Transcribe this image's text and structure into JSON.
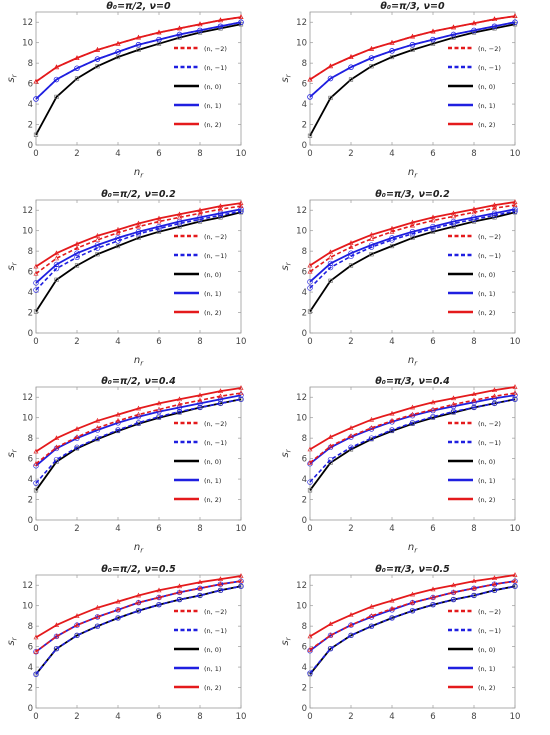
{
  "figure": {
    "legend_entries": [
      "(n, −2)",
      "(n, −1)",
      "(n, 0)",
      "(n, 1)",
      "(n, 2)"
    ],
    "series_colors": {
      "(n, -2)": "#e41a1c",
      "(n, -1)": "#1f1fe0",
      "(n, 0)": "#000000",
      "(n, 1)": "#1f1fe0",
      "(n, 2)": "#e41a1c"
    },
    "series_dash": [
      true,
      true,
      false,
      false,
      false
    ]
  },
  "chart_data": [
    {
      "type": "line",
      "title": "θ₀=π/2, ν=0",
      "xlabel": "n_r",
      "ylabel": "s_r",
      "xlim": [
        0,
        10
      ],
      "ylim": [
        0,
        13
      ],
      "xticks": [
        0,
        2,
        4,
        6,
        8,
        10
      ],
      "yticks": [
        0,
        2,
        4,
        6,
        8,
        10,
        12
      ],
      "x": [
        0,
        1,
        2,
        3,
        4,
        5,
        6,
        7,
        8,
        9,
        10
      ],
      "series": [
        {
          "name": "(n, −2)",
          "values": [
            6.2,
            7.6,
            8.5,
            9.3,
            9.9,
            10.5,
            11.0,
            11.4,
            11.8,
            12.2,
            12.5
          ]
        },
        {
          "name": "(n, −1)",
          "values": [
            4.5,
            6.4,
            7.5,
            8.4,
            9.1,
            9.8,
            10.3,
            10.8,
            11.2,
            11.6,
            12.0
          ]
        },
        {
          "name": "(n, 0)",
          "values": [
            1.0,
            4.7,
            6.5,
            7.7,
            8.6,
            9.3,
            9.9,
            10.5,
            11.0,
            11.4,
            11.8
          ]
        },
        {
          "name": "(n, 1)",
          "values": [
            4.5,
            6.4,
            7.5,
            8.4,
            9.1,
            9.8,
            10.3,
            10.8,
            11.2,
            11.6,
            12.0
          ]
        },
        {
          "name": "(n, 2)",
          "values": [
            6.2,
            7.6,
            8.5,
            9.3,
            9.9,
            10.5,
            11.0,
            11.4,
            11.8,
            12.2,
            12.5
          ]
        }
      ]
    },
    {
      "type": "line",
      "title": "θ₀=π/3, ν=0",
      "xlabel": "n_r",
      "ylabel": "s_r",
      "xlim": [
        0,
        10
      ],
      "ylim": [
        0,
        13
      ],
      "xticks": [
        0,
        2,
        4,
        6,
        8,
        10
      ],
      "yticks": [
        0,
        2,
        4,
        6,
        8,
        10,
        12
      ],
      "x": [
        0,
        1,
        2,
        3,
        4,
        5,
        6,
        7,
        8,
        9,
        10
      ],
      "series": [
        {
          "name": "(n, −2)",
          "values": [
            6.4,
            7.7,
            8.6,
            9.4,
            10.0,
            10.6,
            11.1,
            11.5,
            11.9,
            12.3,
            12.6
          ]
        },
        {
          "name": "(n, −1)",
          "values": [
            4.7,
            6.5,
            7.6,
            8.5,
            9.2,
            9.8,
            10.3,
            10.8,
            11.2,
            11.6,
            12.0
          ]
        },
        {
          "name": "(n, 0)",
          "values": [
            0.9,
            4.6,
            6.4,
            7.7,
            8.6,
            9.3,
            9.9,
            10.5,
            11.0,
            11.4,
            11.8
          ]
        },
        {
          "name": "(n, 1)",
          "values": [
            4.7,
            6.5,
            7.6,
            8.5,
            9.2,
            9.8,
            10.3,
            10.8,
            11.2,
            11.6,
            12.0
          ]
        },
        {
          "name": "(n, 2)",
          "values": [
            6.4,
            7.7,
            8.6,
            9.4,
            10.0,
            10.6,
            11.1,
            11.5,
            11.9,
            12.3,
            12.6
          ]
        }
      ]
    },
    {
      "type": "line",
      "title": "θ₀=π/2, ν=0.2",
      "xlabel": "n_r",
      "ylabel": "s_r",
      "xlim": [
        0,
        10
      ],
      "ylim": [
        0,
        13
      ],
      "xticks": [
        0,
        2,
        4,
        6,
        8,
        10
      ],
      "yticks": [
        0,
        2,
        4,
        6,
        8,
        10,
        12
      ],
      "x": [
        0,
        1,
        2,
        3,
        4,
        5,
        6,
        7,
        8,
        9,
        10
      ],
      "series": [
        {
          "name": "(n, −2)",
          "values": [
            5.8,
            7.3,
            8.3,
            9.1,
            9.8,
            10.4,
            10.9,
            11.3,
            11.7,
            12.1,
            12.4
          ]
        },
        {
          "name": "(n, −1)",
          "values": [
            4.2,
            6.3,
            7.4,
            8.3,
            9.0,
            9.7,
            10.2,
            10.7,
            11.1,
            11.5,
            11.9
          ]
        },
        {
          "name": "(n, 0)",
          "values": [
            2.1,
            5.2,
            6.6,
            7.7,
            8.5,
            9.3,
            9.9,
            10.4,
            10.9,
            11.3,
            11.8
          ]
        },
        {
          "name": "(n, 1)",
          "values": [
            4.9,
            6.7,
            7.8,
            8.6,
            9.3,
            9.9,
            10.4,
            10.9,
            11.3,
            11.7,
            12.1
          ]
        },
        {
          "name": "(n, 2)",
          "values": [
            6.5,
            7.8,
            8.7,
            9.5,
            10.1,
            10.7,
            11.2,
            11.6,
            12.0,
            12.4,
            12.7
          ]
        }
      ]
    },
    {
      "type": "line",
      "title": "θ₀=π/3, ν=0.2",
      "xlabel": "n_r",
      "ylabel": "s_r",
      "xlim": [
        0,
        10
      ],
      "ylim": [
        0,
        13
      ],
      "xticks": [
        0,
        2,
        4,
        6,
        8,
        10
      ],
      "yticks": [
        0,
        2,
        4,
        6,
        8,
        10,
        12
      ],
      "x": [
        0,
        1,
        2,
        3,
        4,
        5,
        6,
        7,
        8,
        9,
        10
      ],
      "series": [
        {
          "name": "(n, −2)",
          "values": [
            6.0,
            7.4,
            8.4,
            9.2,
            9.9,
            10.5,
            11.0,
            11.4,
            11.8,
            12.2,
            12.5
          ]
        },
        {
          "name": "(n, −1)",
          "values": [
            4.4,
            6.4,
            7.5,
            8.4,
            9.1,
            9.7,
            10.2,
            10.7,
            11.1,
            11.5,
            11.9
          ]
        },
        {
          "name": "(n, 0)",
          "values": [
            2.1,
            5.1,
            6.6,
            7.7,
            8.5,
            9.3,
            9.9,
            10.4,
            10.9,
            11.3,
            11.8
          ]
        },
        {
          "name": "(n, 1)",
          "values": [
            5.0,
            6.8,
            7.8,
            8.6,
            9.3,
            9.9,
            10.4,
            10.9,
            11.3,
            11.7,
            12.1
          ]
        },
        {
          "name": "(n, 2)",
          "values": [
            6.6,
            7.9,
            8.8,
            9.6,
            10.2,
            10.8,
            11.3,
            11.7,
            12.1,
            12.5,
            12.8
          ]
        }
      ]
    },
    {
      "type": "line",
      "title": "θ₀=π/2, ν=0.4",
      "xlabel": "n_r",
      "ylabel": "s_r",
      "xlim": [
        0,
        10
      ],
      "ylim": [
        0,
        13
      ],
      "xticks": [
        0,
        2,
        4,
        6,
        8,
        10
      ],
      "yticks": [
        0,
        2,
        4,
        6,
        8,
        10,
        12
      ],
      "x": [
        0,
        1,
        2,
        3,
        4,
        5,
        6,
        7,
        8,
        9,
        10
      ],
      "series": [
        {
          "name": "(n, −2)",
          "values": [
            5.5,
            7.1,
            8.1,
            9.0,
            9.7,
            10.3,
            10.8,
            11.3,
            11.7,
            12.1,
            12.4
          ]
        },
        {
          "name": "(n, −1)",
          "values": [
            3.6,
            5.9,
            7.1,
            8.0,
            8.8,
            9.5,
            10.1,
            10.6,
            11.0,
            11.4,
            11.8
          ]
        },
        {
          "name": "(n, 0)",
          "values": [
            2.9,
            5.7,
            7.0,
            7.9,
            8.7,
            9.4,
            10.0,
            10.5,
            11.0,
            11.4,
            11.8
          ]
        },
        {
          "name": "(n, 1)",
          "values": [
            5.3,
            7.0,
            8.0,
            8.8,
            9.5,
            10.1,
            10.6,
            11.0,
            11.4,
            11.8,
            12.2
          ]
        },
        {
          "name": "(n, 2)",
          "values": [
            6.7,
            8.0,
            8.9,
            9.7,
            10.3,
            10.9,
            11.4,
            11.8,
            12.2,
            12.6,
            12.9
          ]
        }
      ]
    },
    {
      "type": "line",
      "title": "θ₀=π/3, ν=0.4",
      "xlabel": "n_r",
      "ylabel": "s_r",
      "xlim": [
        0,
        10
      ],
      "ylim": [
        0,
        13
      ],
      "xticks": [
        0,
        2,
        4,
        6,
        8,
        10
      ],
      "yticks": [
        0,
        2,
        4,
        6,
        8,
        10,
        12
      ],
      "x": [
        0,
        1,
        2,
        3,
        4,
        5,
        6,
        7,
        8,
        9,
        10
      ],
      "series": [
        {
          "name": "(n, −2)",
          "values": [
            5.6,
            7.2,
            8.2,
            9.0,
            9.7,
            10.3,
            10.8,
            11.3,
            11.7,
            12.1,
            12.4
          ]
        },
        {
          "name": "(n, −1)",
          "values": [
            3.7,
            5.9,
            7.1,
            8.0,
            8.8,
            9.5,
            10.1,
            10.6,
            11.0,
            11.4,
            11.8
          ]
        },
        {
          "name": "(n, 0)",
          "values": [
            2.9,
            5.6,
            6.9,
            7.9,
            8.7,
            9.4,
            10.0,
            10.5,
            11.0,
            11.4,
            11.8
          ]
        },
        {
          "name": "(n, 1)",
          "values": [
            5.5,
            7.1,
            8.1,
            8.9,
            9.6,
            10.2,
            10.7,
            11.1,
            11.5,
            11.9,
            12.2
          ]
        },
        {
          "name": "(n, 2)",
          "values": [
            6.9,
            8.1,
            9.0,
            9.8,
            10.4,
            11.0,
            11.5,
            11.9,
            12.3,
            12.7,
            13.0
          ]
        }
      ]
    },
    {
      "type": "line",
      "title": "θ₀=π/2, ν=0.5",
      "xlabel": "n_r",
      "ylabel": "s_r",
      "xlim": [
        0,
        10
      ],
      "ylim": [
        0,
        13
      ],
      "xticks": [
        0,
        2,
        4,
        6,
        8,
        10
      ],
      "yticks": [
        0,
        2,
        4,
        6,
        8,
        10,
        12
      ],
      "x": [
        0,
        1,
        2,
        3,
        4,
        5,
        6,
        7,
        8,
        9,
        10
      ],
      "series": [
        {
          "name": "(n, −2)",
          "values": [
            5.5,
            7.0,
            8.1,
            8.9,
            9.6,
            10.3,
            10.8,
            11.3,
            11.7,
            12.1,
            12.4
          ]
        },
        {
          "name": "(n, −1)",
          "values": [
            3.3,
            5.8,
            7.1,
            8.0,
            8.8,
            9.5,
            10.1,
            10.6,
            11.0,
            11.5,
            11.9
          ]
        },
        {
          "name": "(n, 0)",
          "values": [
            3.3,
            5.8,
            7.1,
            8.0,
            8.8,
            9.5,
            10.1,
            10.6,
            11.0,
            11.5,
            11.9
          ]
        },
        {
          "name": "(n, 1)",
          "values": [
            5.5,
            7.0,
            8.1,
            8.9,
            9.6,
            10.3,
            10.8,
            11.3,
            11.7,
            12.1,
            12.4
          ]
        },
        {
          "name": "(n, 2)",
          "values": [
            6.9,
            8.1,
            9.0,
            9.8,
            10.4,
            11.0,
            11.5,
            11.9,
            12.3,
            12.6,
            12.9
          ]
        }
      ]
    },
    {
      "type": "line",
      "title": "θ₀=π/3, ν=0.5",
      "xlabel": "n_r",
      "ylabel": "s_r",
      "xlim": [
        0,
        10
      ],
      "ylim": [
        0,
        13
      ],
      "xticks": [
        0,
        2,
        4,
        6,
        8,
        10
      ],
      "yticks": [
        0,
        2,
        4,
        6,
        8,
        10,
        12
      ],
      "x": [
        0,
        1,
        2,
        3,
        4,
        5,
        6,
        7,
        8,
        9,
        10
      ],
      "series": [
        {
          "name": "(n, −2)",
          "values": [
            5.7,
            7.1,
            8.1,
            9.0,
            9.7,
            10.3,
            10.8,
            11.3,
            11.7,
            12.1,
            12.4
          ]
        },
        {
          "name": "(n, −1)",
          "values": [
            3.4,
            5.8,
            7.1,
            8.0,
            8.8,
            9.5,
            10.1,
            10.6,
            11.0,
            11.5,
            11.9
          ]
        },
        {
          "name": "(n, 0)",
          "values": [
            3.3,
            5.8,
            7.1,
            8.0,
            8.8,
            9.5,
            10.1,
            10.6,
            11.0,
            11.5,
            11.9
          ]
        },
        {
          "name": "(n, 1)",
          "values": [
            5.6,
            7.1,
            8.1,
            8.9,
            9.6,
            10.3,
            10.8,
            11.3,
            11.7,
            12.1,
            12.4
          ]
        },
        {
          "name": "(n, 2)",
          "values": [
            7.0,
            8.2,
            9.1,
            9.9,
            10.5,
            11.1,
            11.6,
            12.0,
            12.4,
            12.7,
            13.0
          ]
        }
      ]
    }
  ]
}
